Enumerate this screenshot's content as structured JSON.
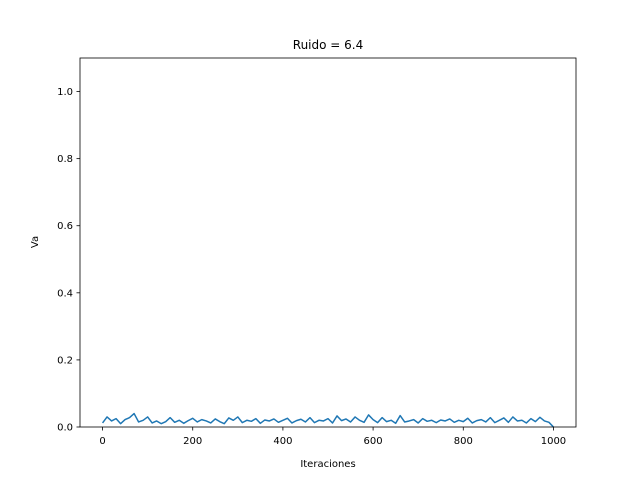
{
  "chart_data": {
    "type": "line",
    "title": "Ruido = 6.4",
    "xlabel": "Iteraciones",
    "ylabel": "Va",
    "xlim": [
      -50,
      1050
    ],
    "ylim": [
      0.0,
      1.1
    ],
    "xticks": [
      0,
      200,
      400,
      600,
      800,
      1000
    ],
    "yticks": [
      0.0,
      0.2,
      0.4,
      0.6,
      0.8,
      1.0
    ],
    "xtick_labels": [
      "0",
      "200",
      "400",
      "600",
      "800",
      "1000"
    ],
    "ytick_labels": [
      "0.0",
      "0.2",
      "0.4",
      "0.6",
      "0.8",
      "1.0"
    ],
    "grid": false,
    "series": [
      {
        "color": "#1f77b4",
        "x": [
          0,
          10,
          20,
          30,
          40,
          50,
          60,
          70,
          80,
          90,
          100,
          110,
          120,
          130,
          140,
          150,
          160,
          170,
          180,
          190,
          200,
          210,
          220,
          230,
          240,
          250,
          260,
          270,
          280,
          290,
          300,
          310,
          320,
          330,
          340,
          350,
          360,
          370,
          380,
          390,
          400,
          410,
          420,
          430,
          440,
          450,
          460,
          470,
          480,
          490,
          500,
          510,
          520,
          530,
          540,
          550,
          560,
          570,
          580,
          590,
          600,
          610,
          620,
          630,
          640,
          650,
          660,
          670,
          680,
          690,
          700,
          710,
          720,
          730,
          740,
          750,
          760,
          770,
          780,
          790,
          800,
          810,
          820,
          830,
          840,
          850,
          860,
          870,
          880,
          890,
          900,
          910,
          920,
          930,
          940,
          950,
          960,
          970,
          980,
          990,
          1000
        ],
        "values": [
          0.012,
          0.03,
          0.018,
          0.025,
          0.01,
          0.022,
          0.028,
          0.04,
          0.015,
          0.02,
          0.03,
          0.012,
          0.018,
          0.01,
          0.016,
          0.028,
          0.014,
          0.02,
          0.011,
          0.019,
          0.026,
          0.015,
          0.022,
          0.018,
          0.012,
          0.024,
          0.016,
          0.01,
          0.027,
          0.02,
          0.03,
          0.013,
          0.02,
          0.017,
          0.025,
          0.011,
          0.021,
          0.018,
          0.024,
          0.014,
          0.02,
          0.026,
          0.012,
          0.019,
          0.023,
          0.015,
          0.028,
          0.013,
          0.02,
          0.018,
          0.025,
          0.012,
          0.033,
          0.019,
          0.024,
          0.015,
          0.03,
          0.02,
          0.014,
          0.036,
          0.022,
          0.013,
          0.028,
          0.016,
          0.02,
          0.011,
          0.034,
          0.015,
          0.018,
          0.022,
          0.012,
          0.025,
          0.017,
          0.02,
          0.013,
          0.021,
          0.018,
          0.024,
          0.014,
          0.02,
          0.016,
          0.026,
          0.012,
          0.019,
          0.022,
          0.015,
          0.028,
          0.013,
          0.02,
          0.027,
          0.014,
          0.03,
          0.018,
          0.02,
          0.012,
          0.025,
          0.016,
          0.029,
          0.018,
          0.014,
          0.0
        ]
      }
    ]
  }
}
